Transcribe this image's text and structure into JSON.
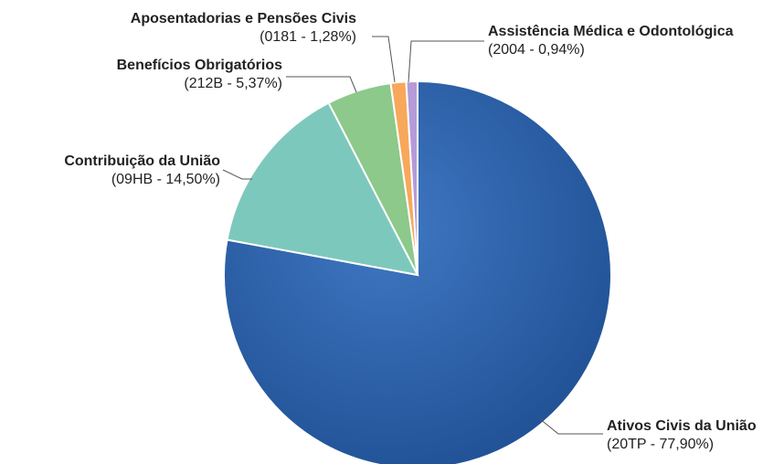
{
  "chart_data": {
    "type": "pie",
    "title": "",
    "start_angle_deg": 0,
    "direction": "clockwise",
    "slices": [
      {
        "name": "Ativos Civis da União",
        "code_label": "(20TP - 77,90%)",
        "value": 77.9,
        "color": "#2a5ea6"
      },
      {
        "name": "Contribuição da União",
        "code_label": "(09HB - 14,50%)",
        "value": 14.5,
        "color": "#7dc8bc"
      },
      {
        "name": "Benefícios Obrigatórios",
        "code_label": "(212B - 5,37%)",
        "value": 5.37,
        "color": "#8cc98a"
      },
      {
        "name": "Aposentadorias e Pensões Civis",
        "code_label": "(0181 - 1,28%)",
        "value": 1.28,
        "color": "#f7a85a"
      },
      {
        "name": "Assistência Médica e Odontológica",
        "code_label": "(2004 - 0,94%)",
        "value": 0.94,
        "color": "#b59bd8"
      }
    ]
  }
}
